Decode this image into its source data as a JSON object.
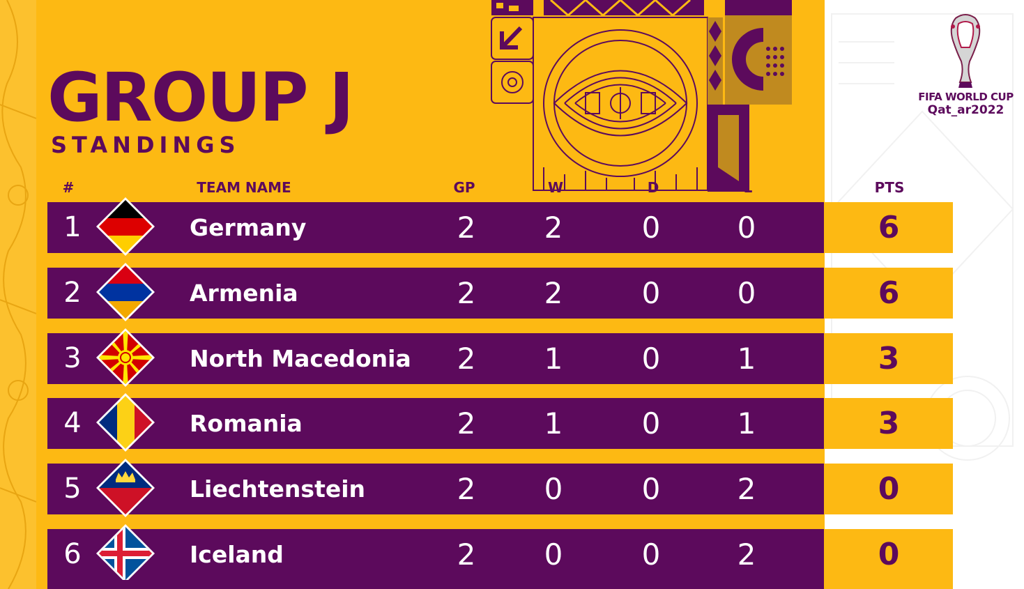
{
  "title": "GROUP J",
  "subtitle": "STANDINGS",
  "brand": {
    "line1": "FIFA WORLD CUP",
    "line2": "Qat_ar2022"
  },
  "colors": {
    "purple": "#5c0a5c",
    "yellow": "#fdb913",
    "white": "#ffffff"
  },
  "table": {
    "headers": {
      "rank": "#",
      "team": "TEAM NAME",
      "gp": "GP",
      "w": "W",
      "d": "D",
      "l": "L",
      "pts": "PTS"
    },
    "rows": [
      {
        "rank": "1",
        "team": "Germany",
        "flag_icon": "germany-flag-icon",
        "gp": "2",
        "w": "2",
        "d": "0",
        "l": "0",
        "pts": "6"
      },
      {
        "rank": "2",
        "team": "Armenia",
        "flag_icon": "armenia-flag-icon",
        "gp": "2",
        "w": "2",
        "d": "0",
        "l": "0",
        "pts": "6"
      },
      {
        "rank": "3",
        "team": "North Macedonia",
        "flag_icon": "north-macedonia-flag-icon",
        "gp": "2",
        "w": "1",
        "d": "0",
        "l": "1",
        "pts": "3"
      },
      {
        "rank": "4",
        "team": "Romania",
        "flag_icon": "romania-flag-icon",
        "gp": "2",
        "w": "1",
        "d": "0",
        "l": "1",
        "pts": "3"
      },
      {
        "rank": "5",
        "team": "Liechtenstein",
        "flag_icon": "liechtenstein-flag-icon",
        "gp": "2",
        "w": "0",
        "d": "0",
        "l": "2",
        "pts": "0"
      },
      {
        "rank": "6",
        "team": "Iceland",
        "flag_icon": "iceland-flag-icon",
        "gp": "2",
        "w": "0",
        "d": "0",
        "l": "2",
        "pts": "0"
      }
    ]
  }
}
